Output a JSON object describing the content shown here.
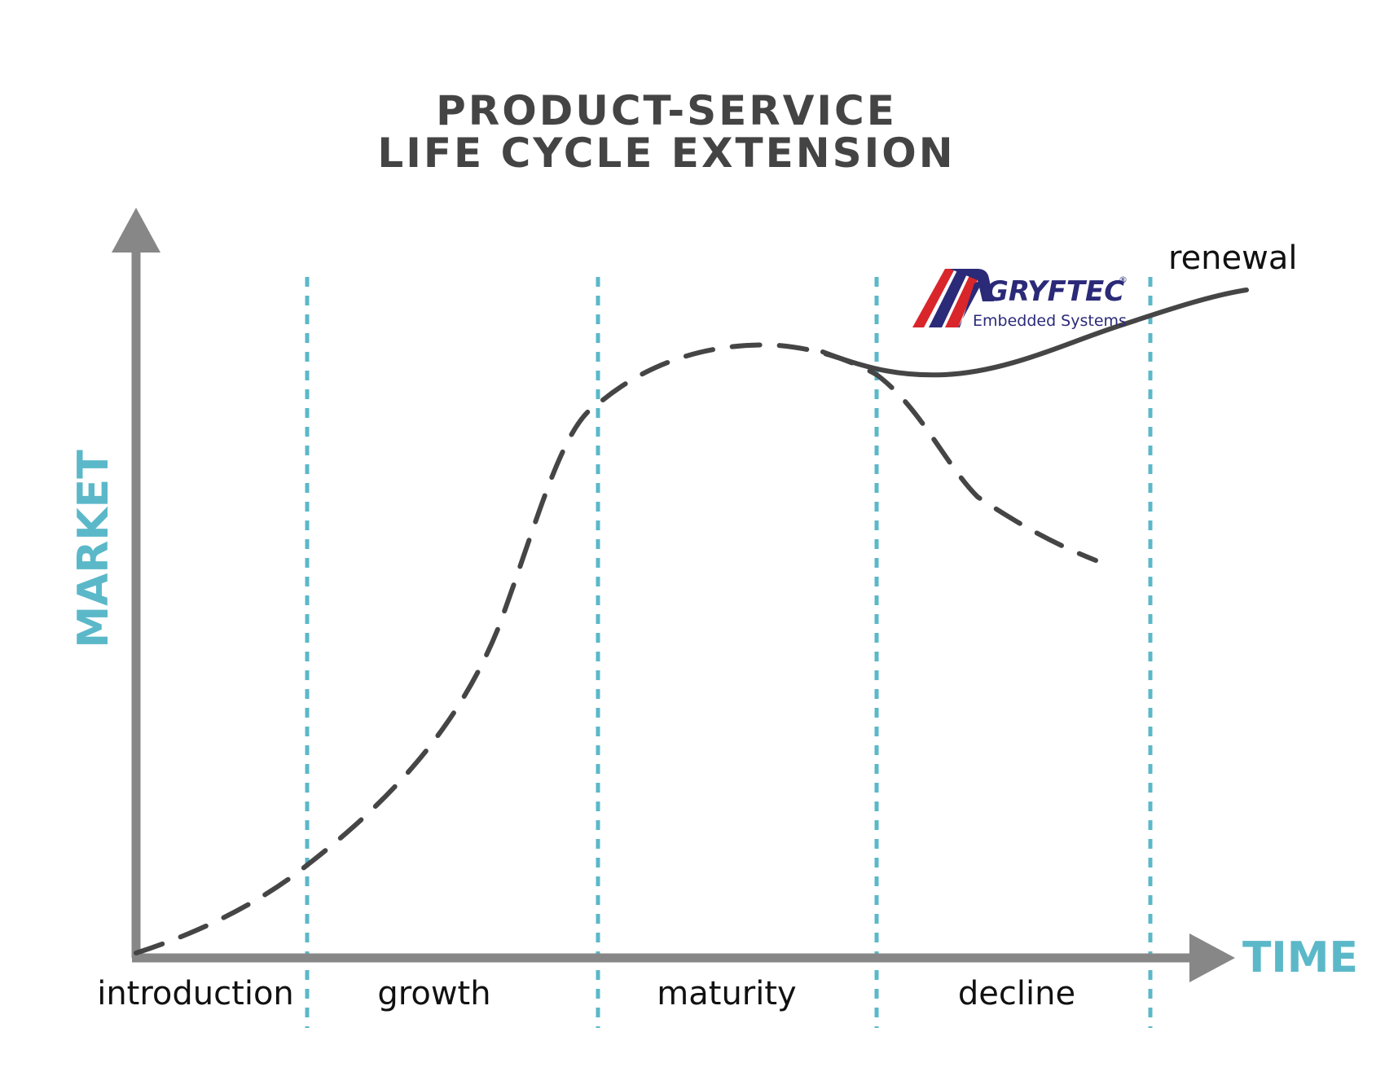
{
  "title": {
    "line1": "PRODUCT-SERVICE",
    "line2": "LIFE CYCLE  EXTENSION"
  },
  "axes": {
    "y_label": "MARKET",
    "x_label": "TIME"
  },
  "stages": [
    {
      "label": "introduction"
    },
    {
      "label": "growth"
    },
    {
      "label": "maturity"
    },
    {
      "label": "decline"
    }
  ],
  "renewal_label": "renewal",
  "logo": {
    "name": "GRYFTEC",
    "registered": "®",
    "tagline": "Embedded Systems"
  },
  "colors": {
    "axis": "#878787",
    "accent": "#5bb8c9",
    "curve": "#454545",
    "logo_text": "#2b2a78",
    "logo_red": "#d9262b"
  }
}
